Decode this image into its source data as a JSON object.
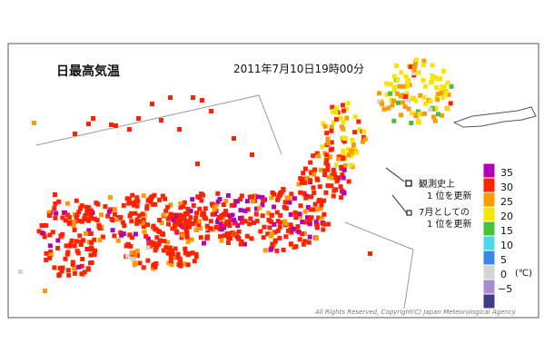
{
  "title": "日最高気温",
  "datetime": "2011年7月10日19時00分",
  "legend_markers": [
    {
      "label_line1": "観測史上",
      "label_line2": "1 位を更新"
    },
    {
      "label_line1": "7月としての",
      "label_line2": "1 位を更新"
    }
  ],
  "color_scale": {
    "unit": "(℃)",
    "items": [
      {
        "label": "35",
        "color": "#b400b4"
      },
      {
        "label": "30",
        "color": "#ff2200"
      },
      {
        "label": "25",
        "color": "#ff9a00"
      },
      {
        "label": "20",
        "color": "#f5e600"
      },
      {
        "label": "15",
        "color": "#45c238"
      },
      {
        "label": "10",
        "color": "#4ad7e6"
      },
      {
        "label": "5",
        "color": "#3a88e6"
      },
      {
        "label": "0",
        "color": "#d4d4d4"
      },
      {
        "label": "−5",
        "color": "#a88ccc"
      },
      {
        "label": "",
        "color": "#3f3b87"
      }
    ]
  },
  "copyright": "All Rights Reserved, Copyright(C) Japan Meteorological Agency"
}
